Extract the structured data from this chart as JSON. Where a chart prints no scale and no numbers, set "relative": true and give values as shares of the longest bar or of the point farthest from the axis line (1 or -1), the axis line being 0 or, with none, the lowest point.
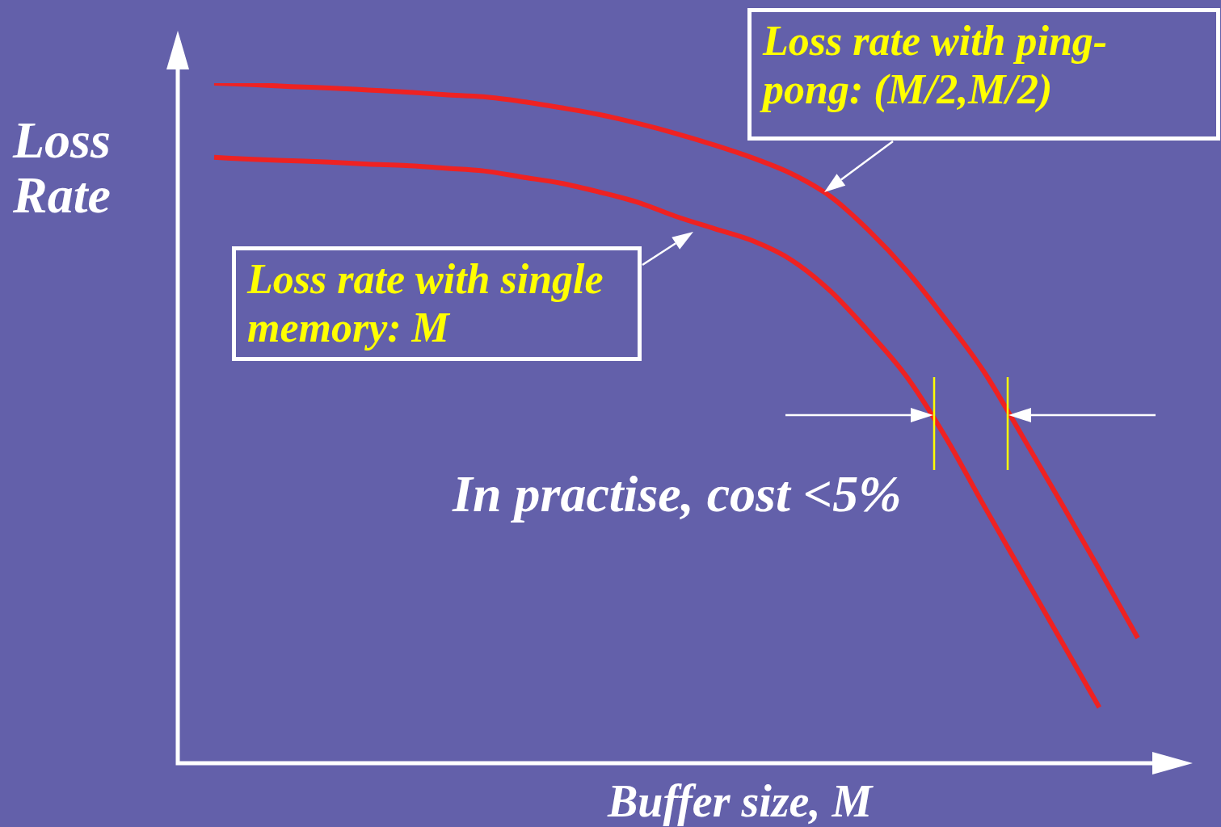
{
  "chart_data": {
    "type": "line",
    "relative": true,
    "xlabel": "Buffer size, M",
    "ylabel": "Loss Rate",
    "marker": "none",
    "line_style": "solid",
    "categories": [
      null,
      null,
      null,
      null,
      null,
      null,
      null,
      null,
      null,
      null,
      null,
      null,
      null,
      null,
      null,
      null,
      null,
      null,
      null,
      null,
      null,
      null,
      null,
      null,
      null
    ],
    "series": [
      {
        "color": "#ee2222",
        "values": [
          1,
          0.998,
          0.995,
          0.993,
          0.99,
          0.987,
          0.983,
          0.98,
          0.973,
          0.964,
          0.954,
          0.941,
          0.926,
          0.909,
          0.89,
          0.867,
          0.834,
          0.784,
          0.724,
          0.653,
          0.576,
          0.481,
          0.384,
          0.285,
          0.184
        ]
      },
      {
        "color": "#ee2222",
        "values": [
          0.891,
          0.888,
          0.886,
          0.884,
          0.881,
          0.879,
          0.875,
          0.871,
          0.862,
          0.853,
          0.84,
          0.825,
          0.804,
          0.786,
          0.768,
          0.74,
          0.695,
          0.635,
          0.568,
          0.48,
          0.379,
          0.28,
          0.181,
          0.082,
          null
        ]
      }
    ],
    "annotations": [
      "Loss rate with ping-pong: (M/2,M/2)",
      "Loss rate with single memory: M",
      "In practise, cost <5%"
    ]
  }
}
